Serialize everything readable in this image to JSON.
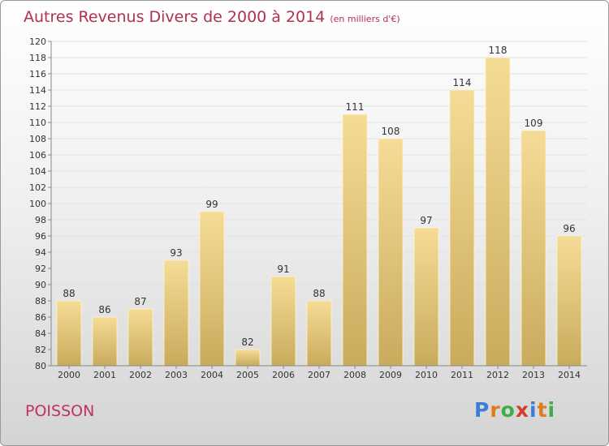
{
  "header": {
    "title": "Autres Revenus Divers de 2000 à 2014",
    "unit": "(en milliers d'€)"
  },
  "commune": "POISSON",
  "logo": {
    "text": "Proxiti",
    "letters": [
      {
        "ch": "P",
        "color": "#3b7fd4"
      },
      {
        "ch": "r",
        "color": "#e07b1c"
      },
      {
        "ch": "o",
        "color": "#3fae49"
      },
      {
        "ch": "x",
        "color": "#d63b2f"
      },
      {
        "ch": "i",
        "color": "#3b7fd4"
      },
      {
        "ch": "t",
        "color": "#e07b1c"
      },
      {
        "ch": "i",
        "color": "#3fae49"
      }
    ]
  },
  "colors": {
    "bar_top": "#f5dc96",
    "bar_bottom": "#c9ab5c",
    "grid": "#e2e2e2",
    "axis": "#888888"
  },
  "chart_data": {
    "type": "bar",
    "title": "Autres Revenus Divers de 2000 à 2014",
    "subtitle": "(en milliers d'€)",
    "categories": [
      "2000",
      "2001",
      "2002",
      "2003",
      "2004",
      "2005",
      "2006",
      "2007",
      "2008",
      "2009",
      "2010",
      "2011",
      "2012",
      "2013",
      "2014"
    ],
    "values": [
      88,
      86,
      87,
      93,
      99,
      82,
      91,
      88,
      111,
      108,
      97,
      114,
      118,
      109,
      96
    ],
    "ylim": [
      80,
      120
    ],
    "ytick_step": 2,
    "grid": true,
    "xlabel": "",
    "ylabel": ""
  }
}
